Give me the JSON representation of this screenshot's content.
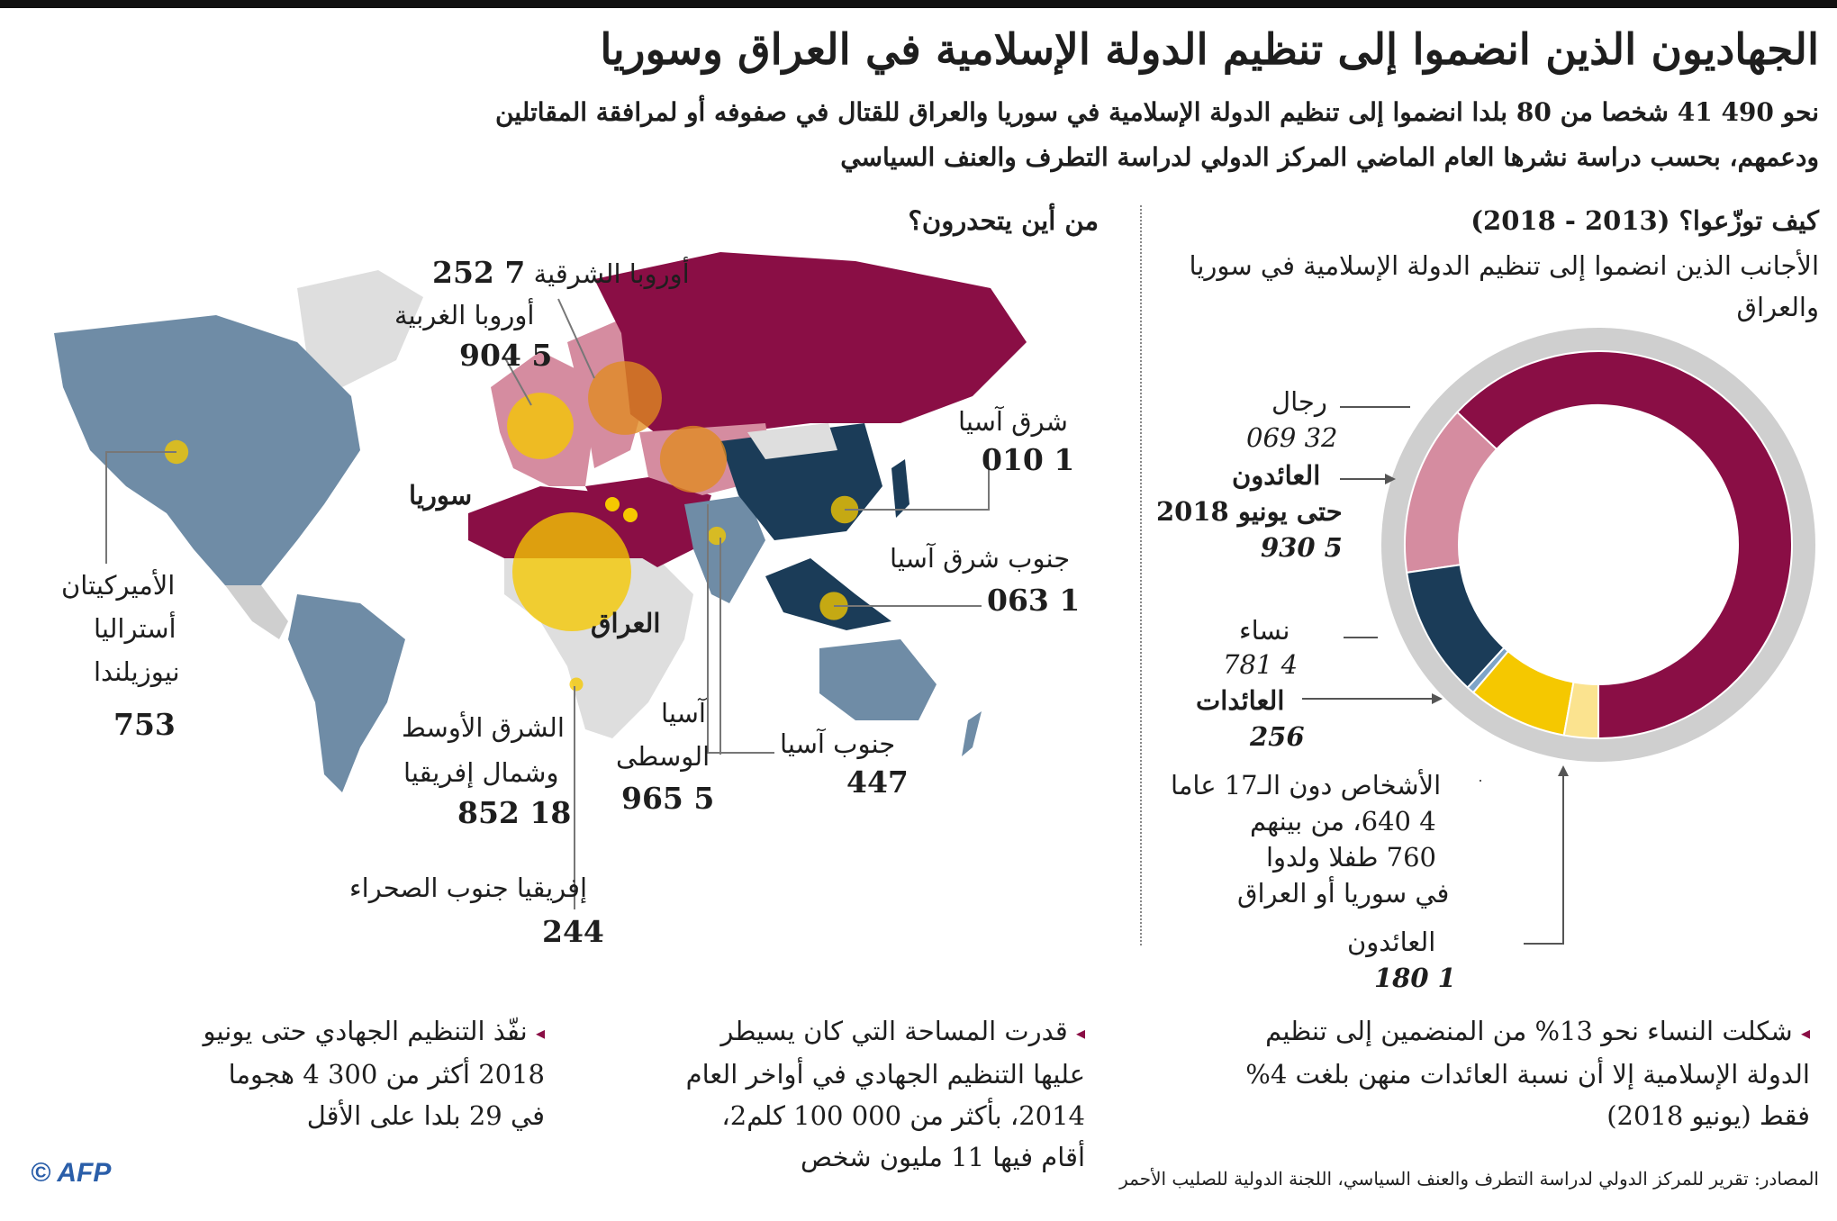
{
  "header": {
    "title": "الجهاديون الذين انضموا إلى تنظيم الدولة الإسلامية في العراق وسوريا",
    "intro": "نحو 490 41 شخصا من 80 بلدا انضموا إلى تنظيم الدولة الإسلامية في سوريا والعراق للقتال في صفوفه أو لمرافقة المقاتلين ودعمهم، بحسب دراسة نشرها العام الماضي المركز الدولي لدراسة التطرف والعنف السياسي"
  },
  "map_section": {
    "title": "من أين يتحدرون؟",
    "regions": [
      {
        "name": "أوروبا الشرقية",
        "value": "7 252"
      },
      {
        "name": "أوروبا الغربية",
        "value": "5 904"
      },
      {
        "name": "شرق آسيا",
        "value": "1 010"
      },
      {
        "name": "جنوب شرق آسيا",
        "value": "1 063"
      },
      {
        "name": "جنوب آسيا",
        "value": "447"
      },
      {
        "name_line1": "آسيا",
        "name_line2": "الوسطى",
        "value": "5 965"
      },
      {
        "name_line1": "الشرق الأوسط",
        "name_line2": "وشمال إفريقيا",
        "value": "18 852"
      },
      {
        "name": "إفريقيا جنوب الصحراء",
        "value": "244"
      },
      {
        "name_line1": "الأميركيتان",
        "name_line2": "أستراليا",
        "name_line3": "نيوزيلندا",
        "value": "753"
      }
    ],
    "syria_label": "سوريا",
    "iraq_label": "العراق"
  },
  "donut_section": {
    "title": "كيف توزّعوا؟ (2013 - 2018)",
    "subtitle": "الأجانب الذين انضموا إلى تنظيم الدولة الإسلامية في سوريا والعراق",
    "labels": {
      "men": "رجال",
      "men_value": "32 069",
      "men_returnees_l1": "العائدون",
      "men_returnees_l2": "حتى يونيو 2018",
      "men_returnees_value": "5 930",
      "women": "نساء",
      "women_value": "4 781",
      "women_returnees": "العائدات",
      "women_returnees_value": "256",
      "minors_l1": "الأشخاص دون الـ17 عاما",
      "minors_l2": "4 640، من بينهم",
      "minors_l3": "760 طفلا ولدوا",
      "minors_l4": "في سوريا أو العراق",
      "minors_returnees": "العائدون",
      "minors_returnees_value": "1 180"
    }
  },
  "chart_data": [
    {
      "type": "pie",
      "title": "كيف توزّعوا؟ (2013 - 2018)",
      "categories": [
        "رجال",
        "العائدون",
        "نساء",
        "العائدات",
        "الأشخاص دون الـ17 عاما",
        "العائدون"
      ],
      "values": [
        26139,
        5930,
        4525,
        256,
        3460,
        1180
      ],
      "groups": [
        {
          "name": "رجال",
          "value": 32069,
          "returnees": 5930
        },
        {
          "name": "نساء",
          "value": 4781,
          "returnees": 256
        },
        {
          "name": "الأشخاص دون الـ17 عاما",
          "value": 4640,
          "returnees": 1180
        }
      ],
      "colors": [
        "#8a0e45",
        "#d58ca0",
        "#1b3c58",
        "#7ea4c8",
        "#f5c800",
        "#fbe38f"
      ]
    },
    {
      "type": "bubble-map",
      "title": "من أين يتحدرون؟",
      "categories": [
        "الشرق الأوسط وشمال إفريقيا",
        "أوروبا الشرقية",
        "آسيا الوسطى",
        "أوروبا الغربية",
        "جنوب شرق آسيا",
        "شرق آسيا",
        "الأميركيتان أستراليا نيوزيلندا",
        "جنوب آسيا",
        "إفريقيا جنوب الصحراء"
      ],
      "values": [
        18852,
        7252,
        5965,
        5904,
        1063,
        1010,
        753,
        447,
        244
      ]
    }
  ],
  "facts": [
    "شكلت النساء نحو 13% من المنضمين إلى تنظيم الدولة الإسلامية إلا أن نسبة العائدات منهن بلغت 4% فقط (يونيو 2018)",
    "قدرت المساحة التي كان يسيطر عليها التنظيم الجهادي في أواخر العام 2014، بأكثر من 000 100 كلم2، أقام فيها 11 مليون شخص",
    "نفّذ التنظيم الجهادي حتى يونيو 2018 أكثر من 300 4 هجوما في 29 بلدا على الأقل"
  ],
  "footer": {
    "source": "المصادر: تقرير للمركز الدولي لدراسة التطرف والعنف السياسي، اللجنة الدولية للصليب الأحمر",
    "logo": "© AFP"
  },
  "colors": {
    "men": "#8a0e45",
    "men_returnees": "#d58ca0",
    "women": "#1b3c58",
    "women_returnees": "#7ea4c8",
    "minors": "#f5c800",
    "minors_returnees": "#fbe38f",
    "ring": "#cfcfcf",
    "bubble": "#f5c800"
  }
}
